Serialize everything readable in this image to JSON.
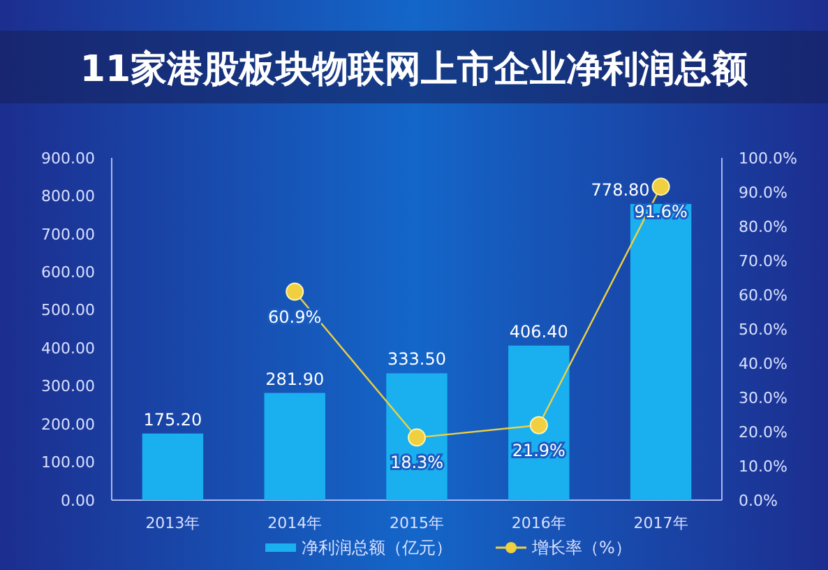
{
  "chart_data": {
    "type": "bar",
    "title": "11家港股板块物联网上市企业净利润总额",
    "categories": [
      "2013年",
      "2014年",
      "2015年",
      "2016年",
      "2017年"
    ],
    "series": [
      {
        "name": "净利润总额（亿元）",
        "color": "#1ab0f0",
        "values": [
          175.2,
          281.9,
          333.5,
          406.4,
          778.8
        ],
        "value_labels": [
          "175.20",
          "281.90",
          "333.50",
          "406.40",
          "778.80"
        ]
      },
      {
        "name": "增长率（%）",
        "type": "line",
        "axis": "y2",
        "color": "#f0d040",
        "marker": "circle",
        "values": [
          null,
          60.9,
          18.3,
          21.9,
          91.6
        ],
        "value_labels": [
          null,
          "60.9%",
          "18.3%",
          "21.9%",
          "91.6%"
        ]
      }
    ],
    "ylim": [
      0,
      900
    ],
    "yticks": [
      {
        "value": 0,
        "label": "0.00"
      },
      {
        "value": 100,
        "label": "100.00"
      },
      {
        "value": 200,
        "label": "200.00"
      },
      {
        "value": 300,
        "label": "300.00"
      },
      {
        "value": 400,
        "label": "400.00"
      },
      {
        "value": 500,
        "label": "500.00"
      },
      {
        "value": 600,
        "label": "600.00"
      },
      {
        "value": 700,
        "label": "700.00"
      },
      {
        "value": 800,
        "label": "800.00"
      },
      {
        "value": 900,
        "label": "900.00"
      }
    ],
    "y2lim": [
      0,
      100
    ],
    "y2ticks": [
      {
        "value": 0,
        "label": "0.0%"
      },
      {
        "value": 10,
        "label": "10.0%"
      },
      {
        "value": 20,
        "label": "20.0%"
      },
      {
        "value": 30,
        "label": "30.0%"
      },
      {
        "value": 40,
        "label": "40.0%"
      },
      {
        "value": 50,
        "label": "50.0%"
      },
      {
        "value": 60,
        "label": "60.0%"
      },
      {
        "value": 70,
        "label": "70.0%"
      },
      {
        "value": 80,
        "label": "80.0%"
      },
      {
        "value": 90,
        "label": "90.0%"
      },
      {
        "value": 100,
        "label": "100.0%"
      }
    ],
    "legend": "bottom"
  }
}
